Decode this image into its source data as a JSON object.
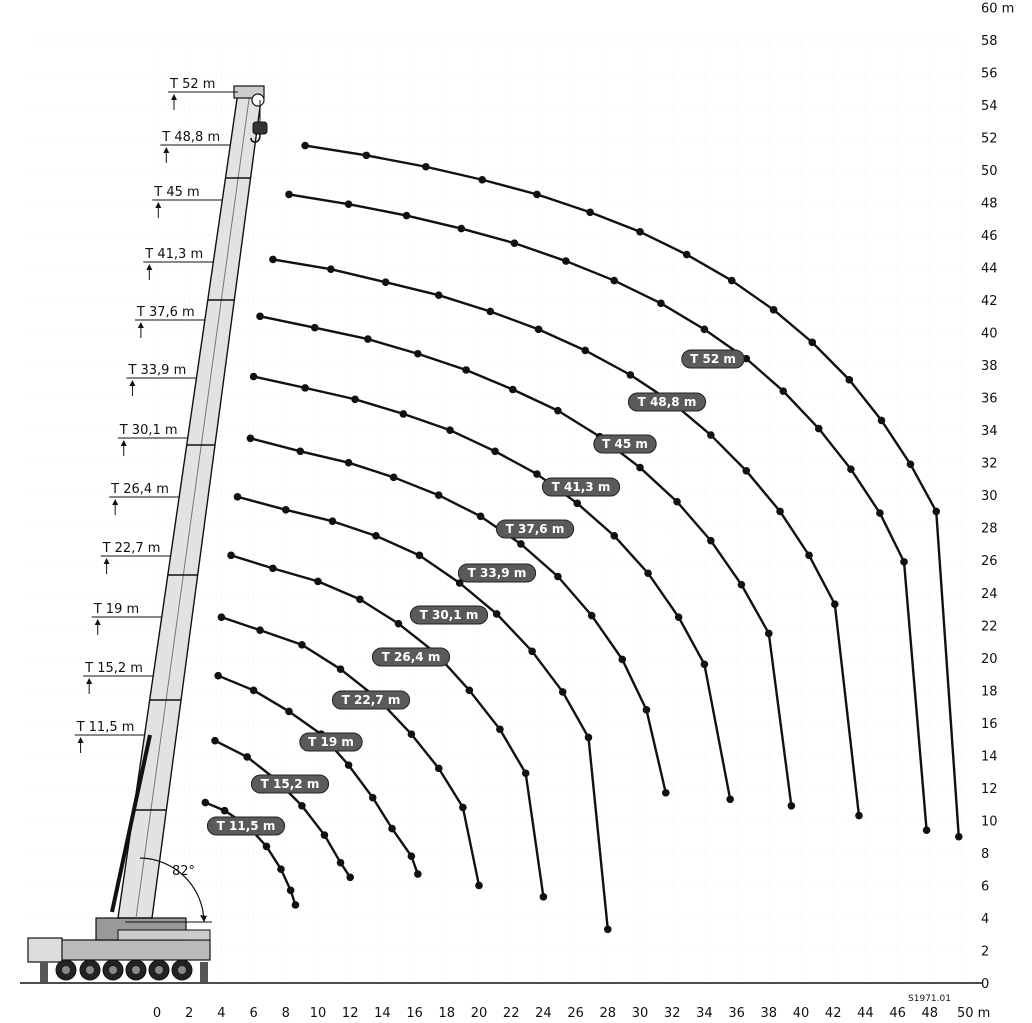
{
  "angle_label": "82°",
  "figure_code": "S1971.01",
  "chart_data": {
    "type": "line",
    "title": "",
    "xlabel": "",
    "ylabel": "",
    "xlim": [
      0,
      50
    ],
    "ylim": [
      0,
      60
    ],
    "x_ticks": [
      "0",
      "2",
      "4",
      "6",
      "8",
      "10",
      "12",
      "14",
      "16",
      "18",
      "20",
      "22",
      "24",
      "26",
      "28",
      "30",
      "32",
      "34",
      "36",
      "38",
      "40",
      "42",
      "44",
      "46",
      "48",
      "50 m"
    ],
    "y_ticks": [
      "0",
      "2",
      "4",
      "6",
      "8",
      "10",
      "12",
      "14",
      "16",
      "18",
      "20",
      "22",
      "24",
      "26",
      "28",
      "30",
      "32",
      "34",
      "36",
      "38",
      "40",
      "42",
      "44",
      "46",
      "48",
      "50",
      "52",
      "54",
      "56",
      "58",
      "60 m"
    ],
    "boom_lengths": [
      "T 52 m",
      "T 48,8 m",
      "T 45 m",
      "T 41,3 m",
      "T 37,6 m",
      "T 33,9 m",
      "T 30,1 m",
      "T 26,4 m",
      "T 22,7 m",
      "T 19 m",
      "T 15,2 m",
      "T 11,5 m"
    ],
    "series": [
      {
        "name": "T 11,5 m",
        "x": [
          3.0,
          4.2,
          5.6,
          6.8,
          7.7,
          8.3,
          8.6
        ],
        "y": [
          11.1,
          10.6,
          9.7,
          8.4,
          7.0,
          5.7,
          4.8
        ]
      },
      {
        "name": "T 15,2 m",
        "x": [
          3.6,
          5.6,
          7.4,
          9.0,
          10.4,
          11.4,
          12.0
        ],
        "y": [
          14.9,
          13.9,
          12.5,
          10.9,
          9.1,
          7.4,
          6.5
        ]
      },
      {
        "name": "T 19 m",
        "x": [
          3.8,
          6.0,
          8.2,
          10.2,
          11.9,
          13.4,
          14.6,
          15.8,
          16.2
        ],
        "y": [
          18.9,
          18.0,
          16.7,
          15.3,
          13.4,
          11.4,
          9.5,
          7.8,
          6.7
        ]
      },
      {
        "name": "T 22,7 m",
        "x": [
          4.0,
          6.4,
          9.0,
          11.4,
          13.7,
          15.8,
          17.5,
          19.0,
          20.0
        ],
        "y": [
          22.5,
          21.7,
          20.8,
          19.3,
          17.5,
          15.3,
          13.2,
          10.8,
          6.0
        ]
      },
      {
        "name": "T 26,4 m",
        "x": [
          4.6,
          7.2,
          10.0,
          12.6,
          15.0,
          17.3,
          19.4,
          21.3,
          22.9,
          24.0
        ],
        "y": [
          26.3,
          25.5,
          24.7,
          23.6,
          22.1,
          20.3,
          18.0,
          15.6,
          12.9,
          5.3
        ]
      },
      {
        "name": "T 30,1 m",
        "x": [
          5.0,
          8.0,
          10.9,
          13.6,
          16.3,
          18.8,
          21.1,
          23.3,
          25.2,
          26.8,
          28.0
        ],
        "y": [
          29.9,
          29.1,
          28.4,
          27.5,
          26.3,
          24.6,
          22.7,
          20.4,
          17.9,
          15.1,
          3.3
        ]
      },
      {
        "name": "T 33,9 m",
        "x": [
          5.8,
          8.9,
          11.9,
          14.7,
          17.5,
          20.1,
          22.6,
          24.9,
          27.0,
          28.9,
          30.4,
          31.6
        ],
        "y": [
          33.5,
          32.7,
          32.0,
          31.1,
          30.0,
          28.7,
          27.0,
          25.0,
          22.6,
          19.9,
          16.8,
          11.7
        ]
      },
      {
        "name": "T 37,6 m",
        "x": [
          6.0,
          9.2,
          12.3,
          15.3,
          18.2,
          21.0,
          23.6,
          26.1,
          28.4,
          30.5,
          32.4,
          34.0,
          35.6
        ],
        "y": [
          37.3,
          36.6,
          35.9,
          35.0,
          34.0,
          32.7,
          31.3,
          29.5,
          27.5,
          25.2,
          22.5,
          19.6,
          11.3
        ]
      },
      {
        "name": "T 41,3 m",
        "x": [
          6.4,
          9.8,
          13.1,
          16.2,
          19.2,
          22.1,
          24.9,
          27.5,
          30.0,
          32.3,
          34.4,
          36.3,
          38.0,
          39.4
        ],
        "y": [
          41.0,
          40.3,
          39.6,
          38.7,
          37.7,
          36.5,
          35.2,
          33.6,
          31.7,
          29.6,
          27.2,
          24.5,
          21.5,
          10.9
        ]
      },
      {
        "name": "T 45 m",
        "x": [
          7.2,
          10.8,
          14.2,
          17.5,
          20.7,
          23.7,
          26.6,
          29.4,
          32.0,
          34.4,
          36.6,
          38.7,
          40.5,
          42.1,
          43.6
        ],
        "y": [
          44.5,
          43.9,
          43.1,
          42.3,
          41.3,
          40.2,
          38.9,
          37.4,
          35.7,
          33.7,
          31.5,
          29.0,
          26.3,
          23.3,
          10.3
        ]
      },
      {
        "name": "T 48,8 m",
        "x": [
          8.2,
          11.9,
          15.5,
          18.9,
          22.2,
          25.4,
          28.4,
          31.3,
          34.0,
          36.6,
          38.9,
          41.1,
          43.1,
          44.9,
          46.4,
          47.8
        ],
        "y": [
          48.5,
          47.9,
          47.2,
          46.4,
          45.5,
          44.4,
          43.2,
          41.8,
          40.2,
          38.4,
          36.4,
          34.1,
          31.6,
          28.9,
          25.9,
          9.4
        ]
      },
      {
        "name": "T 52 m",
        "x": [
          9.2,
          13.0,
          16.7,
          20.2,
          23.6,
          26.9,
          30.0,
          32.9,
          35.7,
          38.3,
          40.7,
          43.0,
          45.0,
          46.8,
          48.4,
          49.8
        ],
        "y": [
          51.5,
          50.9,
          50.2,
          49.4,
          48.5,
          47.4,
          46.2,
          44.8,
          43.2,
          41.4,
          39.4,
          37.1,
          34.6,
          31.9,
          29.0,
          9.0
        ]
      }
    ]
  }
}
